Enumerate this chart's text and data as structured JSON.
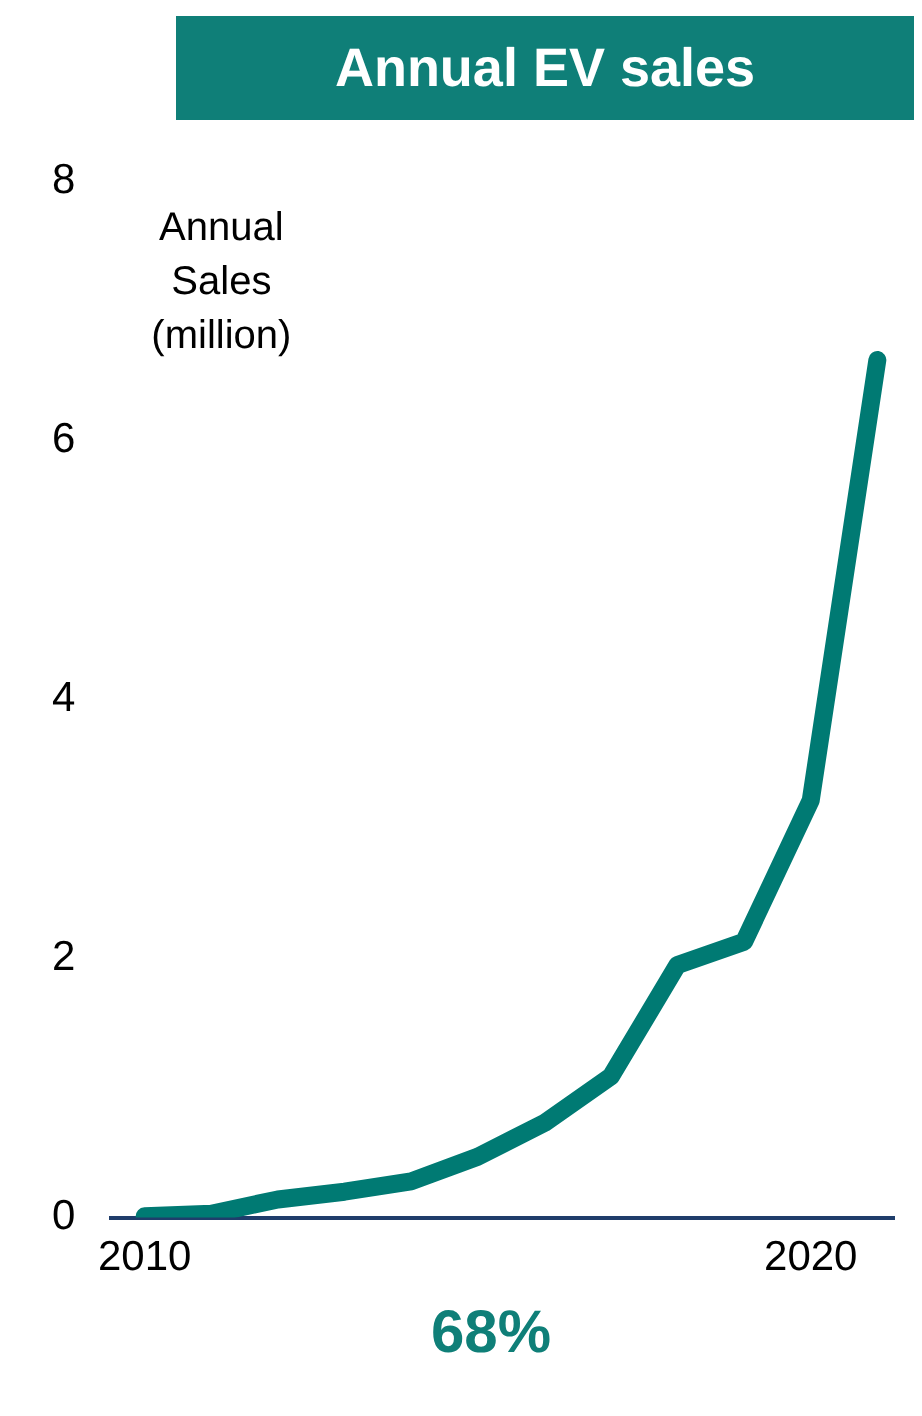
{
  "chart_data": {
    "type": "line",
    "title": "Annual EV sales",
    "ylabel": "Annual Sales (million)",
    "x": [
      2010,
      2011,
      2012,
      2013,
      2014,
      2015,
      2016,
      2017,
      2018,
      2019,
      2020,
      2021
    ],
    "series": [
      {
        "color": "#007a73",
        "values": [
          0.01,
          0.03,
          0.14,
          0.2,
          0.28,
          0.47,
          0.73,
          1.09,
          1.95,
          2.13,
          3.22,
          6.62
        ]
      }
    ],
    "xlim": [
      2009.5,
      2021.25
    ],
    "xticks": [
      2010,
      2020
    ],
    "ylim": [
      0,
      8
    ],
    "yticks": [
      0,
      2,
      4,
      6,
      8
    ],
    "grid": false,
    "legend": false,
    "marker": "none",
    "line_style": "solid",
    "annotations": [
      "68%"
    ]
  }
}
